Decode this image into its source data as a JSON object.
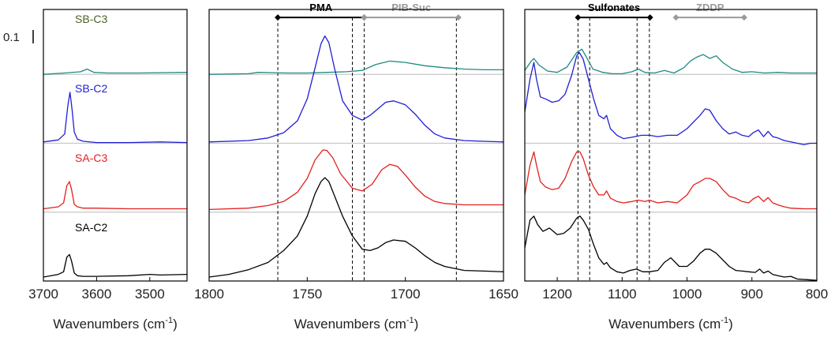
{
  "scale_bar_label": "0.1",
  "chart_data": [
    {
      "type": "line",
      "id": "panel-oh",
      "xlabel": "Wavenumbers (cm",
      "xlabel_sup": "-1",
      "xlabel_close": ")",
      "xlim": [
        3700,
        3430
      ],
      "xticks": [
        {
          "value": 3700,
          "label": "3700"
        },
        {
          "value": 3600,
          "label": "3600"
        },
        {
          "value": 3500,
          "label": "3500"
        }
      ],
      "series_labels": [
        {
          "text": "SB-C3",
          "color": "#4f6228",
          "x": 3610,
          "y": 3.9
        },
        {
          "text": "SB-C2",
          "color": "#1f1fd6",
          "x": 3610,
          "y": 2.85
        },
        {
          "text": "SA-C3",
          "color": "#e0211d",
          "x": 3610,
          "y": 1.8
        },
        {
          "text": "SA-C2",
          "color": "#000000",
          "x": 3610,
          "y": 0.75
        }
      ],
      "baselines": [
        3.12,
        2.08,
        1.04
      ],
      "series": [
        {
          "name": "SB-C3",
          "color": "#1f8a80",
          "x": [
            3700,
            3660,
            3630,
            3618,
            3605,
            3580,
            3520,
            3430
          ],
          "y": [
            3.12,
            3.14,
            3.16,
            3.2,
            3.15,
            3.14,
            3.14,
            3.15
          ]
        },
        {
          "name": "SB-C2",
          "color": "#1f1fd6",
          "x": [
            3700,
            3672,
            3660,
            3654,
            3650,
            3646,
            3642,
            3636,
            3625,
            3600,
            3540,
            3480,
            3430
          ],
          "y": [
            2.1,
            2.13,
            2.22,
            2.65,
            2.85,
            2.58,
            2.25,
            2.14,
            2.11,
            2.09,
            2.09,
            2.1,
            2.09
          ]
        },
        {
          "name": "SA-C3",
          "color": "#e0211d",
          "x": [
            3700,
            3672,
            3662,
            3656,
            3651,
            3647,
            3642,
            3636,
            3625,
            3600,
            3540,
            3480,
            3430
          ],
          "y": [
            1.09,
            1.12,
            1.18,
            1.44,
            1.5,
            1.38,
            1.16,
            1.12,
            1.1,
            1.1,
            1.09,
            1.09,
            1.09
          ]
        },
        {
          "name": "SA-C2",
          "color": "#000000",
          "x": [
            3700,
            3672,
            3662,
            3656,
            3651,
            3647,
            3642,
            3636,
            3625,
            3600,
            3540,
            3500,
            3480,
            3430
          ],
          "y": [
            0.06,
            0.1,
            0.14,
            0.36,
            0.4,
            0.3,
            0.12,
            0.08,
            0.07,
            0.07,
            0.08,
            0.1,
            0.09,
            0.1
          ]
        }
      ],
      "ylim": [
        0,
        4.1
      ],
      "dashed_lines": [],
      "region_markers": []
    },
    {
      "type": "line",
      "id": "panel-carbonyl",
      "xlabel": "Wavenumbers (cm",
      "xlabel_sup": "-1",
      "xlabel_close": ")",
      "xlim": [
        1800,
        1650
      ],
      "xticks": [
        {
          "value": 1800,
          "label": "1800"
        },
        {
          "value": 1750,
          "label": "1750"
        },
        {
          "value": 1700,
          "label": "1700"
        },
        {
          "value": 1650,
          "label": "1650"
        }
      ],
      "baselines": [
        3.12,
        2.08,
        1.04
      ],
      "series_labels": [],
      "series": [
        {
          "name": "SB-C3",
          "color": "#1f8a80",
          "x": [
            1800,
            1780,
            1775,
            1760,
            1750,
            1740,
            1730,
            1722,
            1715,
            1708,
            1700,
            1690,
            1680,
            1670,
            1660,
            1650
          ],
          "y": [
            3.12,
            3.13,
            3.15,
            3.14,
            3.14,
            3.15,
            3.16,
            3.18,
            3.27,
            3.32,
            3.3,
            3.25,
            3.22,
            3.2,
            3.19,
            3.19
          ]
        },
        {
          "name": "SB-C2",
          "color": "#1f1fd6",
          "x": [
            1800,
            1780,
            1770,
            1762,
            1755,
            1750,
            1746,
            1743,
            1741,
            1739,
            1736,
            1732,
            1727,
            1722,
            1718,
            1714,
            1710,
            1706,
            1700,
            1695,
            1690,
            1685,
            1680,
            1670,
            1660,
            1650
          ],
          "y": [
            2.1,
            2.12,
            2.16,
            2.24,
            2.42,
            2.75,
            3.22,
            3.58,
            3.7,
            3.6,
            3.2,
            2.72,
            2.5,
            2.43,
            2.5,
            2.6,
            2.7,
            2.72,
            2.66,
            2.52,
            2.35,
            2.22,
            2.16,
            2.12,
            2.11,
            2.1
          ]
        },
        {
          "name": "SA-C3",
          "color": "#e0211d",
          "x": [
            1800,
            1780,
            1770,
            1762,
            1755,
            1750,
            1746,
            1742,
            1740,
            1737,
            1733,
            1727,
            1722,
            1717,
            1712,
            1708,
            1704,
            1700,
            1695,
            1690,
            1685,
            1680,
            1670,
            1660,
            1650
          ],
          "y": [
            1.08,
            1.1,
            1.14,
            1.2,
            1.34,
            1.55,
            1.83,
            1.98,
            1.97,
            1.86,
            1.62,
            1.4,
            1.36,
            1.46,
            1.68,
            1.76,
            1.73,
            1.6,
            1.42,
            1.28,
            1.2,
            1.17,
            1.15,
            1.15,
            1.15
          ]
        },
        {
          "name": "SA-C2",
          "color": "#000000",
          "x": [
            1800,
            1790,
            1780,
            1770,
            1762,
            1755,
            1750,
            1746,
            1743,
            1741,
            1739,
            1736,
            1732,
            1727,
            1722,
            1718,
            1714,
            1710,
            1706,
            1700,
            1695,
            1690,
            1685,
            1680,
            1670,
            1660,
            1650
          ],
          "y": [
            0.06,
            0.1,
            0.17,
            0.28,
            0.46,
            0.68,
            0.98,
            1.32,
            1.5,
            1.56,
            1.5,
            1.28,
            0.98,
            0.68,
            0.48,
            0.46,
            0.5,
            0.58,
            0.62,
            0.6,
            0.5,
            0.38,
            0.28,
            0.22,
            0.16,
            0.15,
            0.14
          ]
        }
      ],
      "ylim": [
        0,
        4.1
      ],
      "dashed_lines": [
        1765,
        1727,
        1721,
        1674
      ],
      "region_markers": [
        {
          "label": "PMA",
          "from": 1765,
          "to": 1721,
          "color": "#000000",
          "y": 3.98
        },
        {
          "label": "PIB-Suc",
          "from": 1721,
          "to": 1673,
          "color": "#9a9a9a",
          "y": 3.98
        }
      ]
    },
    {
      "type": "line",
      "id": "panel-sulfonate",
      "xlabel": "Wavenumbers (cm",
      "xlabel_sup": "-1",
      "xlabel_close": ")",
      "xlim": [
        1250,
        800
      ],
      "xticks": [
        {
          "value": 1200,
          "label": "1200"
        },
        {
          "value": 1100,
          "label": "1100"
        },
        {
          "value": 1000,
          "label": "1000"
        },
        {
          "value": 900,
          "label": "900"
        },
        {
          "value": 800,
          "label": "800"
        }
      ],
      "baselines": [
        3.12,
        2.08,
        1.04
      ],
      "series_labels": [],
      "series": [
        {
          "name": "SB-C3",
          "color": "#1f8a80",
          "x": [
            1250,
            1240,
            1236,
            1228,
            1215,
            1200,
            1185,
            1170,
            1162,
            1155,
            1145,
            1130,
            1115,
            1100,
            1085,
            1075,
            1065,
            1050,
            1035,
            1020,
            1005,
            995,
            985,
            975,
            965,
            955,
            945,
            930,
            915,
            900,
            880,
            860,
            840,
            820,
            800
          ],
          "y": [
            3.18,
            3.32,
            3.36,
            3.26,
            3.17,
            3.15,
            3.23,
            3.45,
            3.5,
            3.38,
            3.2,
            3.15,
            3.13,
            3.13,
            3.16,
            3.2,
            3.15,
            3.14,
            3.18,
            3.14,
            3.22,
            3.32,
            3.38,
            3.42,
            3.36,
            3.4,
            3.3,
            3.2,
            3.15,
            3.16,
            3.14,
            3.15,
            3.14,
            3.14,
            3.14
          ]
        },
        {
          "name": "SB-C2",
          "color": "#1f1fd6",
          "x": [
            1250,
            1242,
            1236,
            1232,
            1226,
            1218,
            1208,
            1198,
            1188,
            1178,
            1170,
            1166,
            1160,
            1152,
            1144,
            1136,
            1128,
            1124,
            1118,
            1108,
            1098,
            1085,
            1070,
            1058,
            1045,
            1030,
            1015,
            1000,
            990,
            980,
            972,
            965,
            955,
            945,
            935,
            925,
            915,
            905,
            898,
            890,
            882,
            875,
            868,
            860,
            850,
            840,
            830,
            820,
            810,
            800
          ],
          "y": [
            2.55,
            3.05,
            3.3,
            3.05,
            2.78,
            2.75,
            2.7,
            2.72,
            2.82,
            3.1,
            3.4,
            3.45,
            3.35,
            3.05,
            2.75,
            2.5,
            2.45,
            2.5,
            2.3,
            2.2,
            2.15,
            2.17,
            2.2,
            2.2,
            2.18,
            2.2,
            2.2,
            2.3,
            2.4,
            2.5,
            2.6,
            2.58,
            2.42,
            2.3,
            2.22,
            2.25,
            2.2,
            2.18,
            2.24,
            2.28,
            2.18,
            2.26,
            2.18,
            2.16,
            2.12,
            2.1,
            2.08,
            2.06,
            2.08,
            2.08
          ]
        },
        {
          "name": "SA-C3",
          "color": "#e0211d",
          "x": [
            1250,
            1242,
            1236,
            1232,
            1226,
            1218,
            1208,
            1198,
            1188,
            1178,
            1170,
            1165,
            1160,
            1152,
            1144,
            1136,
            1128,
            1124,
            1118,
            1108,
            1098,
            1085,
            1075,
            1065,
            1058,
            1045,
            1030,
            1015,
            1000,
            990,
            980,
            972,
            965,
            955,
            945,
            935,
            925,
            915,
            905,
            898,
            890,
            882,
            875,
            868,
            860,
            850,
            840,
            820,
            800
          ],
          "y": [
            1.3,
            1.75,
            1.95,
            1.75,
            1.5,
            1.42,
            1.38,
            1.4,
            1.55,
            1.8,
            1.95,
            1.95,
            1.85,
            1.6,
            1.42,
            1.3,
            1.3,
            1.36,
            1.25,
            1.2,
            1.18,
            1.2,
            1.22,
            1.2,
            1.22,
            1.18,
            1.2,
            1.18,
            1.3,
            1.45,
            1.5,
            1.55,
            1.55,
            1.5,
            1.38,
            1.28,
            1.25,
            1.2,
            1.18,
            1.24,
            1.28,
            1.2,
            1.26,
            1.18,
            1.15,
            1.12,
            1.1,
            1.09,
            1.09
          ]
        },
        {
          "name": "SA-C2",
          "color": "#000000",
          "x": [
            1250,
            1242,
            1236,
            1230,
            1222,
            1212,
            1200,
            1190,
            1180,
            1170,
            1165,
            1160,
            1152,
            1144,
            1136,
            1128,
            1124,
            1118,
            1108,
            1098,
            1088,
            1078,
            1068,
            1058,
            1045,
            1035,
            1025,
            1012,
            1000,
            990,
            980,
            972,
            965,
            955,
            945,
            935,
            925,
            915,
            905,
            895,
            888,
            882,
            875,
            868,
            860,
            850,
            840,
            830,
            815,
            800
          ],
          "y": [
            0.5,
            0.92,
            0.98,
            0.85,
            0.75,
            0.8,
            0.7,
            0.72,
            0.8,
            0.95,
            0.98,
            0.92,
            0.78,
            0.55,
            0.35,
            0.25,
            0.28,
            0.2,
            0.14,
            0.12,
            0.16,
            0.18,
            0.14,
            0.14,
            0.16,
            0.28,
            0.35,
            0.22,
            0.22,
            0.3,
            0.42,
            0.48,
            0.48,
            0.42,
            0.32,
            0.22,
            0.16,
            0.15,
            0.14,
            0.13,
            0.18,
            0.12,
            0.15,
            0.1,
            0.08,
            0.06,
            0.07,
            0.03,
            0.02,
            0.01
          ]
        }
      ],
      "ylim": [
        0,
        4.1
      ],
      "dashed_lines": [
        1168,
        1150,
        1077,
        1058
      ],
      "region_markers": [
        {
          "label": "Sulfonates",
          "from": 1168,
          "to": 1057,
          "color": "#000000",
          "y": 3.98
        },
        {
          "label": "ZDDP",
          "from": 1017,
          "to": 912,
          "color": "#9a9a9a",
          "y": 3.98
        }
      ]
    }
  ]
}
